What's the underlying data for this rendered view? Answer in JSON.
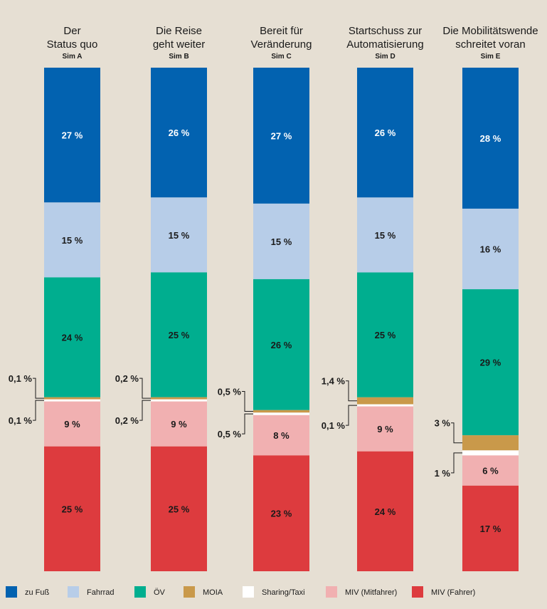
{
  "chart_data": {
    "type": "bar",
    "stacked": true,
    "percent": true,
    "legend_position": "bottom",
    "categories_legend": [
      "zu Fuß",
      "Fahrrad",
      "ÖV",
      "MOIA",
      "Sharing/Taxi",
      "MIV (Mitfahrer)",
      "MIV (Fahrer)"
    ],
    "colors": [
      "#0262b0",
      "#b7cde8",
      "#00ae8f",
      "#c9994a",
      "#ffffff",
      "#f1b0b1",
      "#dd3b3e"
    ],
    "label_colors": [
      "#ffffff",
      "#1a1a1a",
      "#1a1a1a",
      "#1a1a1a",
      "#1a1a1a",
      "#1a1a1a",
      "#1a1a1a"
    ],
    "columns": [
      {
        "title_lines": [
          "Der",
          "Status quo"
        ],
        "sim": "Sim A",
        "values": [
          27,
          15,
          24,
          0.1,
          0.1,
          9,
          25
        ],
        "labels": [
          "27 %",
          "15 %",
          "24 %",
          "0,1 %",
          "0,1 %",
          "9 %",
          "25 %"
        ]
      },
      {
        "title_lines": [
          "Die Reise",
          "geht weiter"
        ],
        "sim": "Sim B",
        "values": [
          26,
          15,
          25,
          0.2,
          0.2,
          9,
          25
        ],
        "labels": [
          "26 %",
          "15 %",
          "25 %",
          "0,2 %",
          "0,2 %",
          "9 %",
          "25 %"
        ]
      },
      {
        "title_lines": [
          "Bereit für",
          "Veränderung"
        ],
        "sim": "Sim C",
        "values": [
          27,
          15,
          26,
          0.5,
          0.5,
          8,
          23
        ],
        "labels": [
          "27 %",
          "15 %",
          "26 %",
          "0,5 %",
          "0,5 %",
          "8 %",
          "23 %"
        ]
      },
      {
        "title_lines": [
          "Startschuss zur",
          "Automatisierung"
        ],
        "sim": "Sim D",
        "values": [
          26,
          15,
          25,
          1.4,
          0.1,
          9,
          24
        ],
        "labels": [
          "26 %",
          "15 %",
          "25 %",
          "1,4 %",
          "0,1 %",
          "9 %",
          "24 %"
        ]
      },
      {
        "title_lines": [
          "Die Mobilitätswende",
          "schreitet voran"
        ],
        "sim": "Sim E",
        "values": [
          28,
          16,
          29,
          3,
          1,
          6,
          17
        ],
        "labels": [
          "28 %",
          "16 %",
          "29 %",
          "3 %",
          "1 %",
          "6 %",
          "17 %"
        ]
      }
    ]
  }
}
